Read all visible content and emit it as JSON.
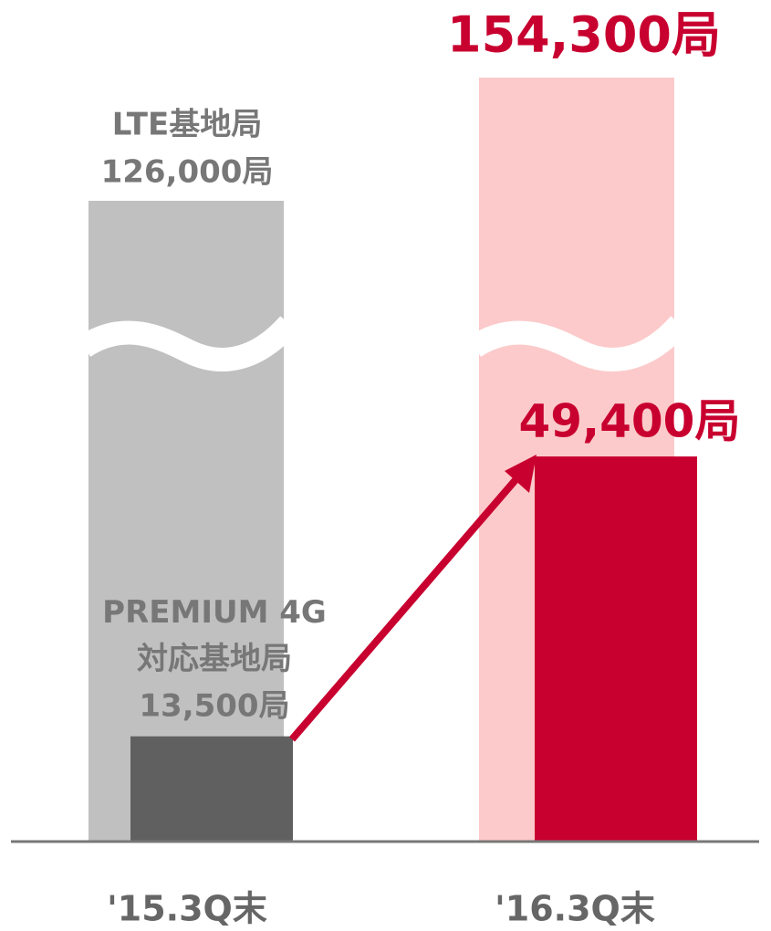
{
  "chart_data": {
    "type": "bar",
    "categories": [
      "'15.3Q末",
      "'16.3Q末"
    ],
    "series": [
      {
        "name": "LTE基地局",
        "colors": [
          "#c0c0c0",
          "#fccaca"
        ],
        "values": [
          126000,
          154300
        ],
        "value_labels": [
          "126,000局",
          "154,300局"
        ]
      },
      {
        "name": "PREMIUM 4G\n対応基地局",
        "colors": [
          "#606060",
          "#c8002f"
        ],
        "values": [
          13500,
          49400
        ],
        "value_labels": [
          "13,500局",
          "49,400局"
        ]
      }
    ]
  }
}
